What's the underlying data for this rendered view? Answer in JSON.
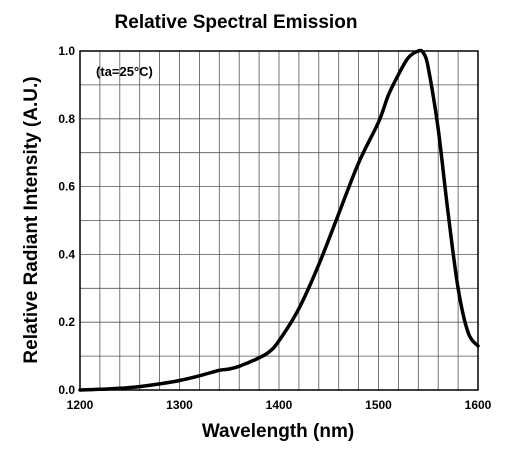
{
  "chart_data": {
    "type": "line",
    "title": "Relative Spectral Emission",
    "annotation": "(ta=25°C)",
    "xlabel": "Wavelength (nm)",
    "ylabel": "Relative Radiant Intensity (A.U.)",
    "xlim": [
      1200,
      1600
    ],
    "ylim": [
      0.0,
      1.0
    ],
    "x_tick_labels": [
      "1200",
      "1300",
      "1400",
      "1500",
      "1600"
    ],
    "y_tick_labels": [
      "0.0",
      "0.2",
      "0.4",
      "0.6",
      "0.8",
      "1.0"
    ],
    "grid": true,
    "series": [
      {
        "color": "#000000",
        "x": [
          1200,
          1220,
          1240,
          1260,
          1280,
          1300,
          1320,
          1340,
          1350,
          1360,
          1370,
          1380,
          1390,
          1400,
          1420,
          1440,
          1460,
          1480,
          1500,
          1510,
          1520,
          1530,
          1540,
          1545,
          1550,
          1560,
          1570,
          1580,
          1590,
          1600
        ],
        "y": [
          0.0,
          0.002,
          0.005,
          0.01,
          0.018,
          0.028,
          0.042,
          0.058,
          0.062,
          0.07,
          0.082,
          0.095,
          0.112,
          0.145,
          0.24,
          0.37,
          0.52,
          0.67,
          0.79,
          0.87,
          0.93,
          0.98,
          1.0,
          0.995,
          0.95,
          0.77,
          0.52,
          0.3,
          0.17,
          0.13
        ]
      }
    ]
  }
}
